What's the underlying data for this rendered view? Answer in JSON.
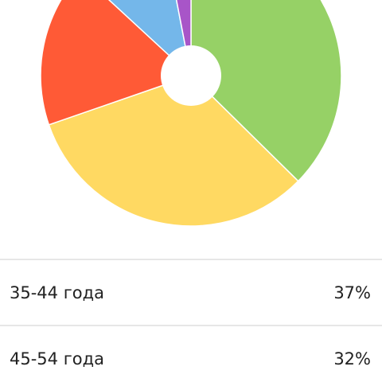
{
  "chart_data": {
    "type": "pie",
    "categories": [
      "35-44 года",
      "45-54 года",
      null,
      null,
      null
    ],
    "values": [
      37,
      32,
      17,
      10,
      3
    ],
    "value_labels": [
      "37%",
      "32%",
      null,
      null,
      null
    ],
    "colors": [
      "#96d166",
      "#ffd962",
      "#ff5a36",
      "#74b7ea",
      "#a855c8"
    ]
  }
}
